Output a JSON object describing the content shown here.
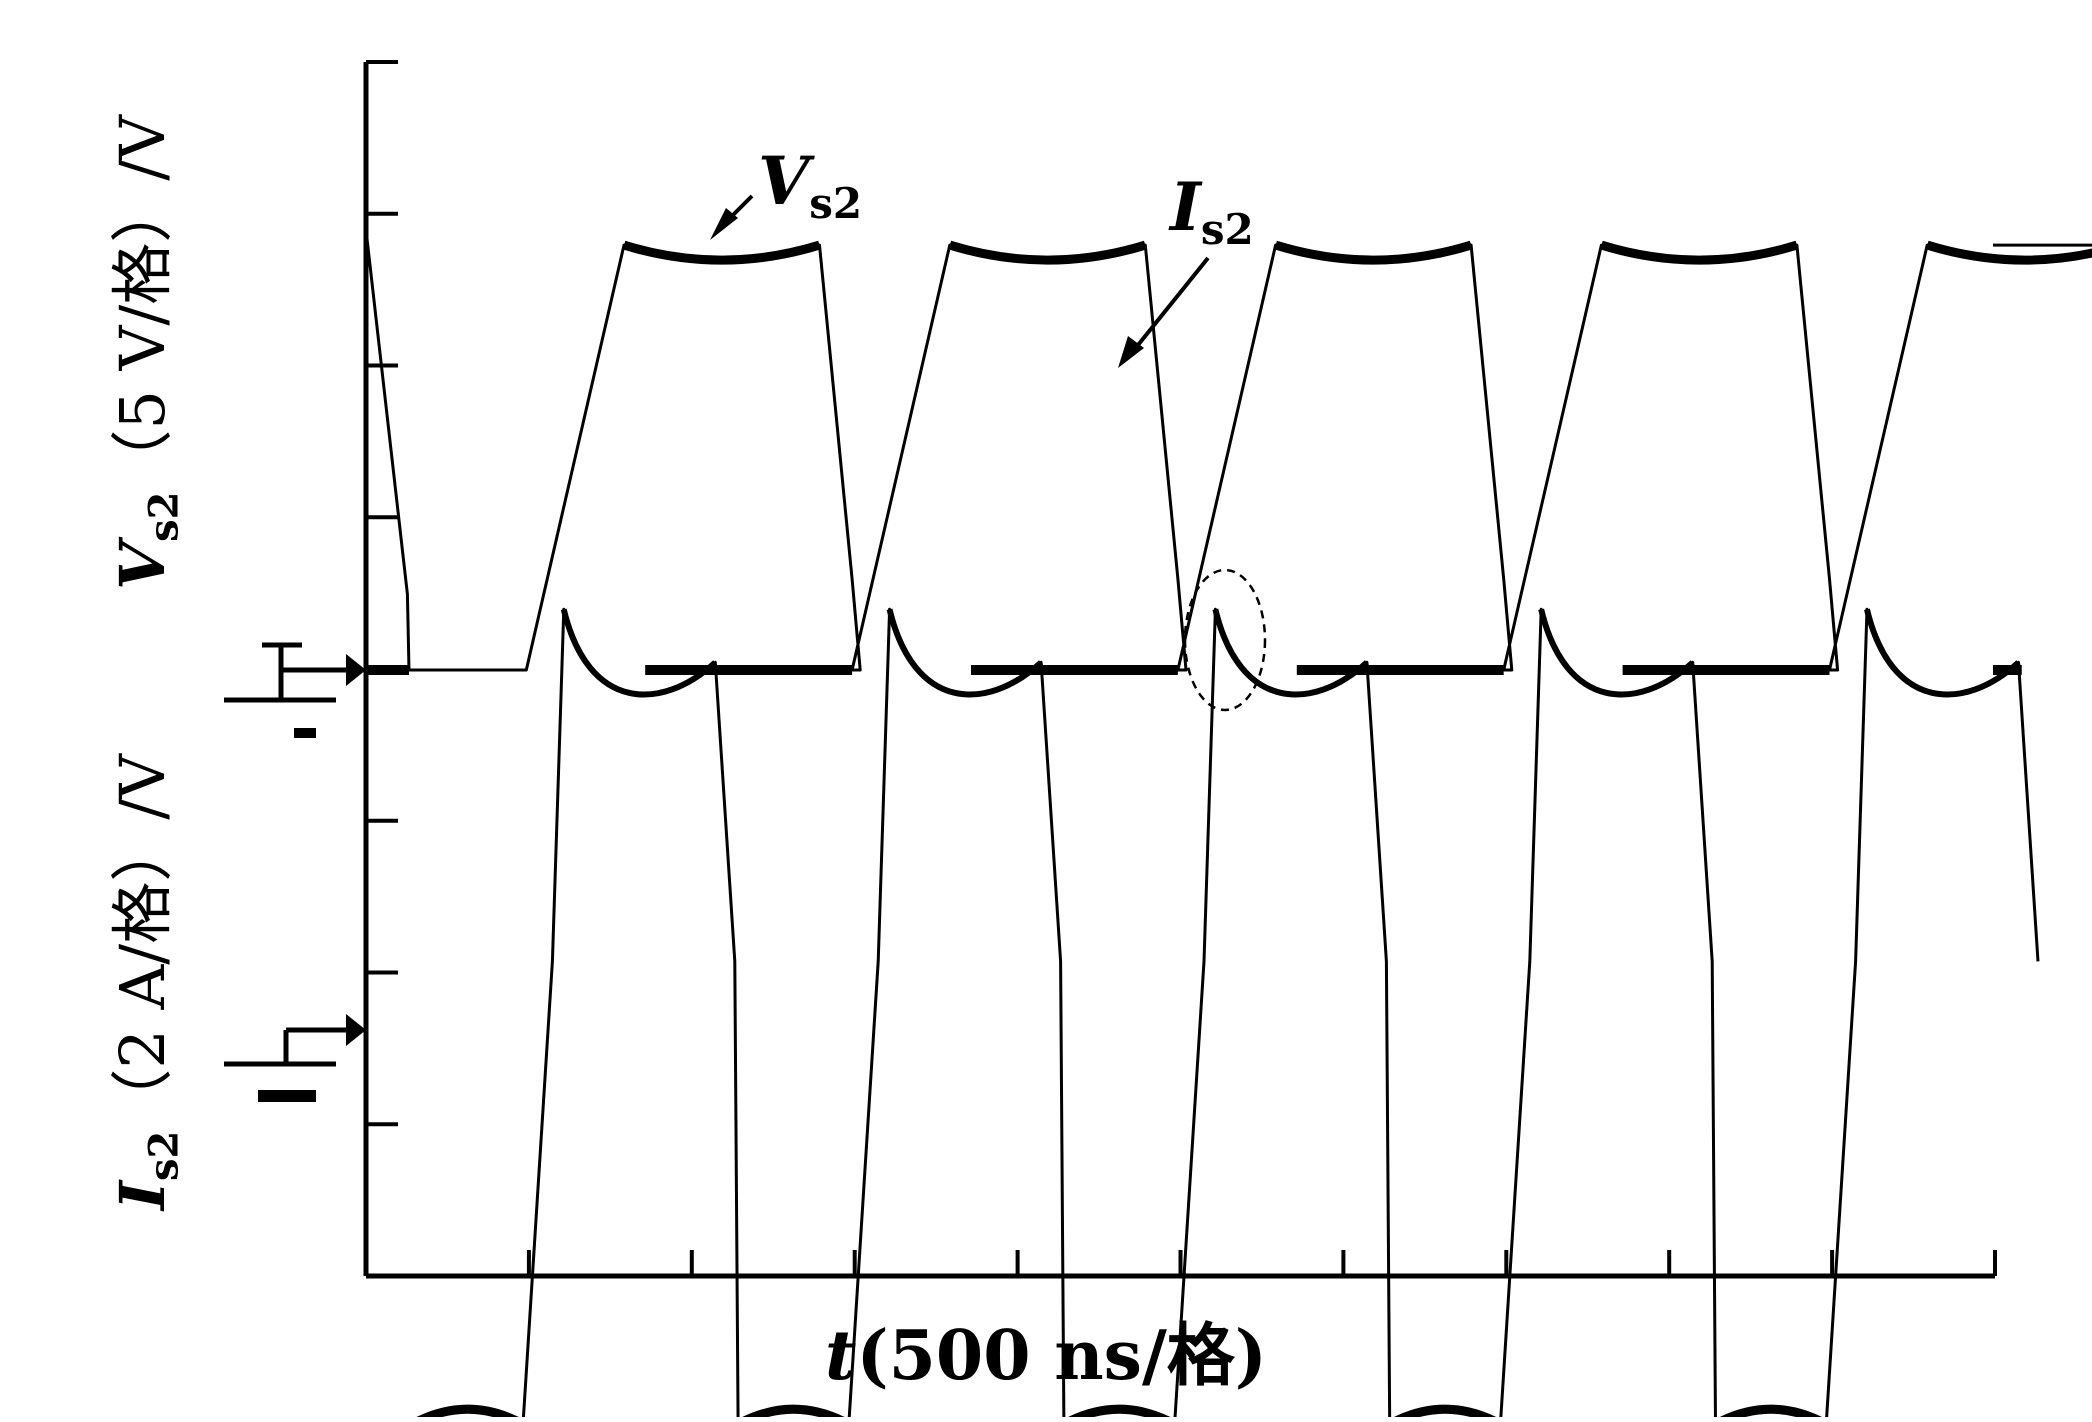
{
  "chart_data": {
    "type": "line",
    "title": "",
    "xlabel": {
      "var": "t",
      "rest": "(500 ns/格)"
    },
    "ylabel_top": {
      "var": "V",
      "sub": "s2",
      "rest": "（5 V/格）/V"
    },
    "ylabel_bottom": {
      "var": "I",
      "sub": "s2",
      "rest": "（2 A/格）/V"
    },
    "x_divisions": 10,
    "y_divisions": 8,
    "x_unit_per_div_ns": 500,
    "switching_period_ns": 1000,
    "series": [
      {
        "name": "Vs2",
        "label": {
          "var": "V",
          "sub": "s2"
        },
        "color": "#000000",
        "scale_per_div": "5 V",
        "high_level_div": 2.8,
        "low_level_div": 0.0,
        "rise_div": 0.6,
        "fall_div": 0.2
      },
      {
        "name": "Is2",
        "label": {
          "var": "I",
          "sub": "s2"
        },
        "color": "#000000",
        "scale_per_div": "2 A",
        "peak_div": 1.9,
        "trough_div": -2.4
      }
    ],
    "grid": false,
    "annotation": "dashed ellipse marking zero-voltage switching instant"
  }
}
